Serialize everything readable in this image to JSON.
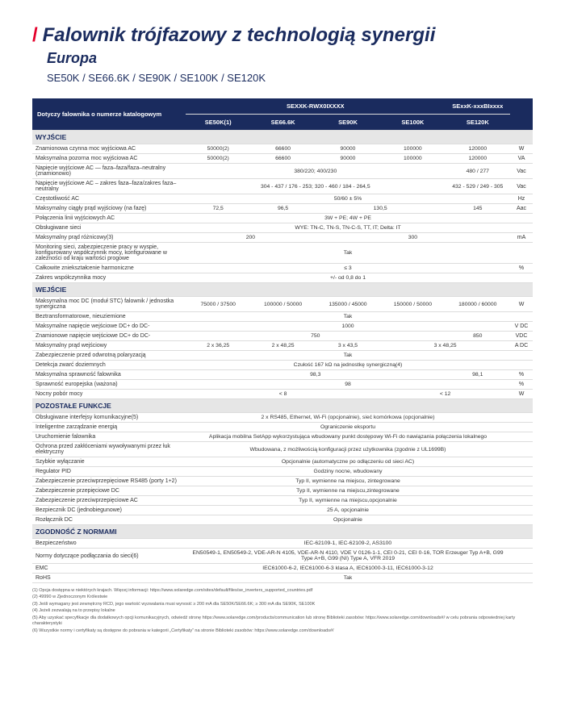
{
  "header": {
    "slash": "/",
    "title": "Falownik trójfazowy z technologią synergii",
    "subtitle": "Europa",
    "models": "SE50K / SE66.6K / SE90K / SE100K / SE120K"
  },
  "colHeaders": {
    "catalog": "Dotyczy falownika o numerze katalogowym",
    "group1": "SEXXK-RWX0IXXXX",
    "group2": "SExxK-xxxBIxxxx",
    "c1": "SE50K(1)",
    "c2": "SE66.6K",
    "c3": "SE90K",
    "c4": "SE100K",
    "c5": "SE120K"
  },
  "sections": {
    "wyjscie": "WYJŚCIE",
    "wejscie": "WEJŚCIE",
    "pozostale": "POZOSTAŁE FUNKCJE",
    "zgodnosc": "ZGODNOŚĆ Z NORMAMI"
  },
  "r": {
    "r1": {
      "l": "Znamionowa czynna moc wyjściowa AC",
      "v": [
        "50000(2)",
        "66600",
        "90000",
        "100000",
        "120000"
      ],
      "u": "W"
    },
    "r2": {
      "l": "Maksymalna pozorna moc wyjściowa AC",
      "v": [
        "50000(2)",
        "66600",
        "90000",
        "100000",
        "120000"
      ],
      "u": "VA"
    },
    "r3": {
      "l": "Napięcie wyjściowe AC — faza–faza/faza–neutralny (znamionowo)",
      "v": "380/220; 400/230",
      "v2": "480 / 277",
      "u": "Vac"
    },
    "r4": {
      "l": "Napięcie wyjściowe AC – zakres faza–faza/zakres faza–neutralny",
      "v": "304 - 437 / 176 - 253; 320 - 460 / 184 - 264,5",
      "v2": "432 - 529 / 249 - 305",
      "u": "Vac"
    },
    "r5": {
      "l": "Częstotliwość AC",
      "v": "50/60 ± 5%",
      "u": "Hz"
    },
    "r6": {
      "l": "Maksymalny ciągły prąd wyjściowy (na fazę)",
      "v": [
        "72,5",
        "96,5",
        "130,5",
        "",
        "145"
      ],
      "u": "Aac",
      "span34": true
    },
    "r7": {
      "l": "Połączenia linii wyjściowych AC",
      "v": "3W + PE; 4W + PE",
      "u": ""
    },
    "r8": {
      "l": "Obsługiwane sieci",
      "v": "WYE: TN-C, TN-S, TN-C-S, TT, IT; Delta: IT",
      "u": ""
    },
    "r9": {
      "l": "Maksymalny prąd różnicowy(3)",
      "v": "200",
      "v2": "300",
      "u": "mA",
      "split21": true
    },
    "r10": {
      "l": "Monitoring sieci, zabezpieczenie pracy w wyspie, konfigurowany współczynnik mocy, konfigurowane w zależności od kraju wartości progowe",
      "v": "Tak",
      "u": ""
    },
    "r11": {
      "l": "Całkowite zniekształcenie harmoniczne",
      "v": "≤ 3",
      "u": "%"
    },
    "r12": {
      "l": "Zakres współczynnika mocy",
      "v": "+/- od 0,8 do 1",
      "u": ""
    },
    "r13": {
      "l": "Maksymalna moc DC (moduł STC) falownik / jednostka synergiczna",
      "v": [
        "75000 / 37500",
        "100000 / 50000",
        "135000 / 45000",
        "150000 / 50000",
        "180000 / 60000"
      ],
      "u": "W"
    },
    "r14": {
      "l": "Beztransformatorowe, nieuziemione",
      "v": "Tak",
      "u": ""
    },
    "r15": {
      "l": "Maksymalne napięcie wejściowe DC+ do DC-",
      "v": "1000",
      "u": "V DC"
    },
    "r16": {
      "l": "Znamionowe napięcie wejściowe DC+ do DC-",
      "v": "750",
      "v2": "850",
      "u": "VDC"
    },
    "r17": {
      "l": "Maksymalny prąd wejściowy",
      "v": [
        "2 x 36,25",
        "2 x 48,25",
        "3 x 43,5",
        "3 x 48,25",
        ""
      ],
      "u": "A DC",
      "span45": true
    },
    "r18": {
      "l": "Zabezpieczenie przed odwrotną polaryzacją",
      "v": "Tak",
      "u": ""
    },
    "r19": {
      "l": "Detekcja zwarć doziemnych",
      "v": "Czułość 167 kΩ na jednostkę synergiczną(4)",
      "u": ""
    },
    "r20": {
      "l": "Maksymalna sprawność falownika",
      "v": "98,3",
      "v2": "98,1",
      "u": "%"
    },
    "r21": {
      "l": "Sprawność europejska (ważona)",
      "v": "98",
      "u": "%"
    },
    "r22": {
      "l": "Nocny pobór mocy",
      "v": "< 8",
      "v2": "< 12",
      "u": "W",
      "split32": true
    },
    "r23": {
      "l": "Obsługiwane interfejsy komunikacyjne(5)",
      "v": "2 x RS485, Ethernet, Wi-Fi (opcjonalnie), sieć komórkowa (opcjonalnie)",
      "u": ""
    },
    "r24": {
      "l": "Inteligentne zarządzanie energią",
      "v": "Ograniczenie eksportu",
      "u": ""
    },
    "r25": {
      "l": "Uruchomienie falownika",
      "v": "Aplikacja mobilna SetApp wykorzystująca wbudowany punkt dostępowy Wi-Fi do nawiązania połączenia lokalnego",
      "u": ""
    },
    "r26": {
      "l": "Ochrona przed zakłóceniami wywoływanymi przez łuk elektryczny",
      "v": "Wbudowana, z możliwością konfiguracji przez użytkownika (zgodnie z UL1699B)",
      "u": ""
    },
    "r27": {
      "l": "Szybkie wyłączanie",
      "v": "Opcjonalnie (automatyczne po odłączeniu od sieci AC)",
      "u": ""
    },
    "r28": {
      "l": "Regulator PID",
      "v": "Godziny nocne, wbudowany",
      "u": ""
    },
    "r29": {
      "l": "Zabezpieczenie przeciwprzepięciowe RS485 (porty 1+2)",
      "v": "Typ II, wymienne na miejscu, zintegrowane",
      "u": ""
    },
    "r30": {
      "l": "Zabezpieczenie przepięciowe DC",
      "v": "Typ II, wymienne na miejscu,zintegrowane",
      "u": ""
    },
    "r31": {
      "l": "Zabezpieczenie przeciwprzepięciowe AC",
      "v": "Typ II, wymienne na miejscu,opcjonalnie",
      "u": ""
    },
    "r32": {
      "l": "Bezpiecznik DC (jednobiegunowe)",
      "v": "25 A, opcjonalnie",
      "u": ""
    },
    "r33": {
      "l": "Rozłącznik DC",
      "v": "Opcjonalnie",
      "u": ""
    },
    "r34": {
      "l": "Bezpieczeństwo",
      "v": "IEC-62109-1, IEC-62109-2, AS3100",
      "u": ""
    },
    "r35": {
      "l": "Normy dotyczące podłączania do sieci(6)",
      "v": "EN50549-1, EN50549-2, VDE-AR-N 4105, VDE-AR-N 4110, VDE V 0126-1-1, CEI 0-21, CEI 0-16, TOR Erzeuger Typ A+B, G99 Type A+B, G99 (NI) Type A, VFR 2019",
      "u": ""
    },
    "r36": {
      "l": "EMC",
      "v": "IEC61000-6-2, IEC61000-6-3 klasa A, IEC61000-3-11, IEC61000-3-12",
      "u": ""
    },
    "r37": {
      "l": "RoHS",
      "v": "Tak",
      "u": ""
    }
  },
  "footnotes": [
    "(1) Opcja dostępna w niektórych krajach. Więcej informacji: https://www.solaredge.com/sites/default/files/se_inverters_supported_countries.pdf",
    "(2) 49990 w Zjednoczonym Królestwie",
    "(3) Jeśli wymagany jest zewnętrzny RCD, jego wartość wyzwalania musi wynosić ≥ 200 mA dla SE50K/SE66.6K; ≥ 300 mA dla SE90K, SE100K",
    "(4) Jeżeli zezwalają na to przepisy lokalne",
    "(5) Aby uzyskać specyfikacje dla dodatkowych opcji komunikacyjnych, odwiedź stronę https://www.solaredge.com/products/communication lub stronę Biblioteki zasobów: https://www.solaredge.com/downloads#/ w celu pobrania odpowiedniej karty charakterystyki",
    "(6) Wszystkie normy i certyfikaty są dostępne do pobrania w kategorii „Certyfikaty” na stronie Biblioteki zasobów: https://www.solaredge.com/downloads#/"
  ]
}
